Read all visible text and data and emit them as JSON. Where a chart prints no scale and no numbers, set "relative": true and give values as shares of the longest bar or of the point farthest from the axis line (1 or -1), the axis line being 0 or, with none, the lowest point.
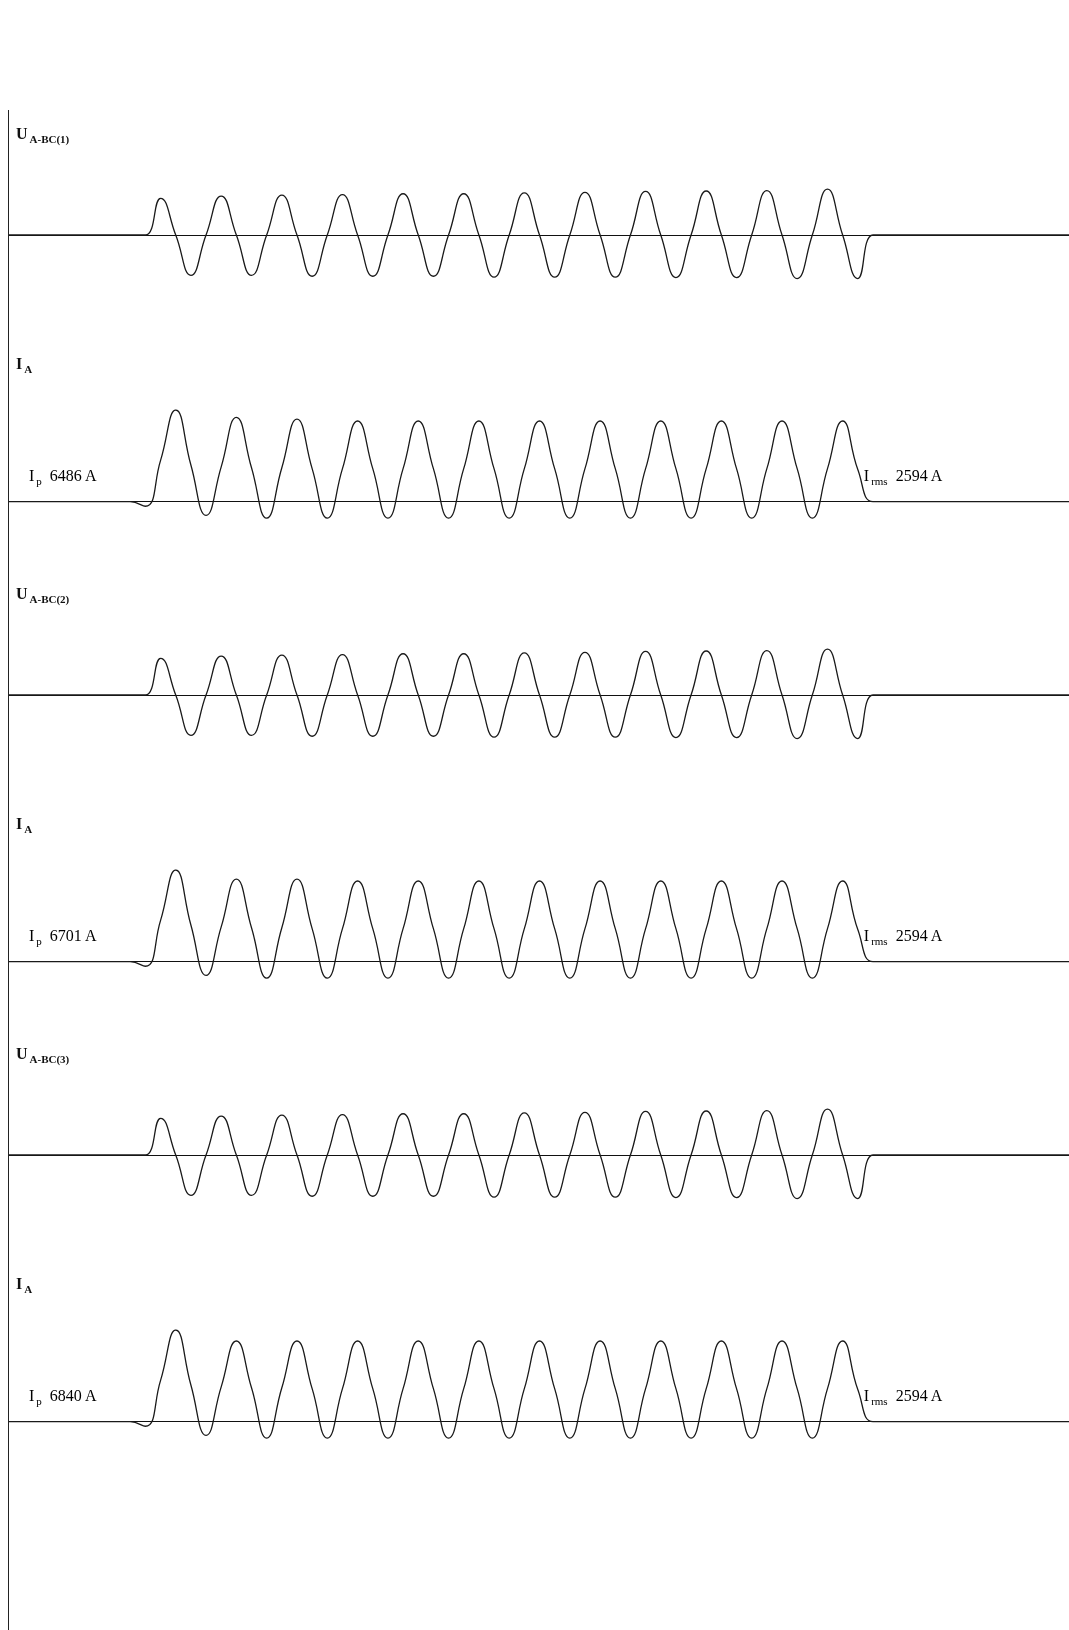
{
  "chart_data": [
    {
      "type": "line",
      "relative": true,
      "marker": "none",
      "title": "U$_{A-BC(1)}$",
      "categories": [
        null,
        null,
        null,
        null,
        null,
        null,
        null,
        null,
        null,
        null,
        null,
        null,
        null,
        null,
        null,
        null,
        null,
        null,
        null,
        null,
        null,
        null,
        null,
        null,
        null,
        null,
        null,
        null,
        null,
        null,
        null,
        null,
        null,
        null,
        null,
        null,
        null,
        null,
        null,
        null,
        null,
        null,
        null,
        null,
        null,
        null,
        null,
        null,
        null,
        null,
        null,
        null,
        null,
        null,
        null,
        null,
        null,
        null,
        null,
        null,
        null,
        null,
        null,
        null,
        null,
        null,
        null,
        null,
        null,
        null,
        null
      ],
      "series": [
        {
          "color": "#1a1a1a",
          "values": [
            0,
            0,
            0,
            0,
            0,
            0,
            0,
            0,
            0,
            0,
            0.8,
            0,
            -0.88,
            0,
            0.85,
            0,
            -0.88,
            0,
            0.87,
            0,
            -0.9,
            0,
            0.88,
            0,
            -0.9,
            0,
            0.9,
            0,
            -0.9,
            0,
            0.9,
            0,
            -0.92,
            0,
            0.92,
            0,
            -0.92,
            0,
            0.93,
            0,
            -0.92,
            0,
            0.95,
            0,
            -0.93,
            0,
            0.96,
            0,
            -0.93,
            0,
            0.97,
            0,
            -0.95,
            0,
            1,
            0,
            -0.95,
            0,
            0,
            0,
            0,
            0,
            0,
            0,
            0,
            0,
            0,
            0,
            0,
            0,
            0
          ]
        }
      ]
    },
    {
      "type": "line",
      "relative": true,
      "marker": "none",
      "title": "I$_{A}$",
      "annotations": [
        "I$_{p}$  6486 A",
        "I$_{rms}$  2594 A"
      ],
      "categories": [
        null,
        null,
        null,
        null,
        null,
        null,
        null,
        null,
        null,
        null,
        null,
        null,
        null,
        null,
        null,
        null,
        null,
        null,
        null,
        null,
        null,
        null,
        null,
        null,
        null,
        null,
        null,
        null,
        null,
        null,
        null,
        null,
        null,
        null,
        null,
        null,
        null,
        null,
        null,
        null,
        null,
        null,
        null,
        null,
        null,
        null,
        null,
        null,
        null,
        null,
        null,
        null,
        null,
        null,
        null,
        null,
        null,
        null,
        null,
        null,
        null,
        null,
        null,
        null,
        null,
        null,
        null,
        null,
        null,
        null,
        null
      ],
      "series": [
        {
          "color": "#1a1a1a",
          "values": [
            0,
            0,
            0,
            0,
            0,
            0,
            0,
            0,
            0,
            -0.05,
            0.45,
            1,
            0.4,
            -0.15,
            0.38,
            0.92,
            0.37,
            -0.18,
            0.37,
            0.9,
            0.36,
            -0.18,
            0.36,
            0.88,
            0.36,
            -0.18,
            0.36,
            0.88,
            0.36,
            -0.18,
            0.36,
            0.88,
            0.36,
            -0.18,
            0.36,
            0.88,
            0.36,
            -0.18,
            0.36,
            0.88,
            0.36,
            -0.18,
            0.36,
            0.88,
            0.36,
            -0.18,
            0.36,
            0.88,
            0.36,
            -0.18,
            0.36,
            0.88,
            0.36,
            -0.18,
            0.36,
            0.88,
            0.35,
            0,
            0,
            0,
            0,
            0,
            0,
            0,
            0,
            0,
            0,
            0,
            0,
            0,
            0
          ]
        }
      ]
    },
    {
      "type": "line",
      "relative": true,
      "marker": "none",
      "title": "U$_{A-BC(2)}$",
      "categories": [
        null,
        null,
        null,
        null,
        null,
        null,
        null,
        null,
        null,
        null,
        null,
        null,
        null,
        null,
        null,
        null,
        null,
        null,
        null,
        null,
        null,
        null,
        null,
        null,
        null,
        null,
        null,
        null,
        null,
        null,
        null,
        null,
        null,
        null,
        null,
        null,
        null,
        null,
        null,
        null,
        null,
        null,
        null,
        null,
        null,
        null,
        null,
        null,
        null,
        null,
        null,
        null,
        null,
        null,
        null,
        null,
        null,
        null,
        null,
        null,
        null,
        null,
        null,
        null,
        null,
        null,
        null,
        null,
        null,
        null,
        null
      ],
      "series": [
        {
          "color": "#1a1a1a",
          "values": [
            0,
            0,
            0,
            0,
            0,
            0,
            0,
            0,
            0,
            0,
            0.8,
            0,
            -0.88,
            0,
            0.85,
            0,
            -0.88,
            0,
            0.87,
            0,
            -0.9,
            0,
            0.88,
            0,
            -0.9,
            0,
            0.9,
            0,
            -0.9,
            0,
            0.9,
            0,
            -0.92,
            0,
            0.92,
            0,
            -0.92,
            0,
            0.93,
            0,
            -0.92,
            0,
            0.95,
            0,
            -0.93,
            0,
            0.96,
            0,
            -0.93,
            0,
            0.97,
            0,
            -0.95,
            0,
            1,
            0,
            -0.95,
            0,
            0,
            0,
            0,
            0,
            0,
            0,
            0,
            0,
            0,
            0,
            0,
            0,
            0
          ]
        }
      ]
    },
    {
      "type": "line",
      "relative": true,
      "marker": "none",
      "title": "I$_{A}$",
      "annotations": [
        "I$_{p}$  6701 A",
        "I$_{rms}$  2594 A"
      ],
      "categories": [
        null,
        null,
        null,
        null,
        null,
        null,
        null,
        null,
        null,
        null,
        null,
        null,
        null,
        null,
        null,
        null,
        null,
        null,
        null,
        null,
        null,
        null,
        null,
        null,
        null,
        null,
        null,
        null,
        null,
        null,
        null,
        null,
        null,
        null,
        null,
        null,
        null,
        null,
        null,
        null,
        null,
        null,
        null,
        null,
        null,
        null,
        null,
        null,
        null,
        null,
        null,
        null,
        null,
        null,
        null,
        null,
        null,
        null,
        null,
        null,
        null,
        null,
        null,
        null,
        null,
        null,
        null,
        null,
        null,
        null,
        null
      ],
      "series": [
        {
          "color": "#1a1a1a",
          "values": [
            0,
            0,
            0,
            0,
            0,
            0,
            0,
            0,
            0,
            -0.05,
            0.45,
            1,
            0.4,
            -0.15,
            0.38,
            0.9,
            0.37,
            -0.18,
            0.37,
            0.9,
            0.36,
            -0.18,
            0.36,
            0.88,
            0.36,
            -0.18,
            0.36,
            0.88,
            0.36,
            -0.18,
            0.36,
            0.88,
            0.36,
            -0.18,
            0.36,
            0.88,
            0.36,
            -0.18,
            0.36,
            0.88,
            0.36,
            -0.18,
            0.36,
            0.88,
            0.36,
            -0.18,
            0.36,
            0.88,
            0.36,
            -0.18,
            0.36,
            0.88,
            0.36,
            -0.18,
            0.36,
            0.88,
            0.35,
            0,
            0,
            0,
            0,
            0,
            0,
            0,
            0,
            0,
            0,
            0,
            0,
            0,
            0
          ]
        }
      ]
    },
    {
      "type": "line",
      "relative": true,
      "marker": "none",
      "title": "U$_{A-BC(3)}$",
      "categories": [
        null,
        null,
        null,
        null,
        null,
        null,
        null,
        null,
        null,
        null,
        null,
        null,
        null,
        null,
        null,
        null,
        null,
        null,
        null,
        null,
        null,
        null,
        null,
        null,
        null,
        null,
        null,
        null,
        null,
        null,
        null,
        null,
        null,
        null,
        null,
        null,
        null,
        null,
        null,
        null,
        null,
        null,
        null,
        null,
        null,
        null,
        null,
        null,
        null,
        null,
        null,
        null,
        null,
        null,
        null,
        null,
        null,
        null,
        null,
        null,
        null,
        null,
        null,
        null,
        null,
        null,
        null,
        null,
        null,
        null,
        null
      ],
      "series": [
        {
          "color": "#1a1a1a",
          "values": [
            0,
            0,
            0,
            0,
            0,
            0,
            0,
            0,
            0,
            0,
            0.8,
            0,
            -0.88,
            0,
            0.85,
            0,
            -0.88,
            0,
            0.87,
            0,
            -0.9,
            0,
            0.88,
            0,
            -0.9,
            0,
            0.9,
            0,
            -0.9,
            0,
            0.9,
            0,
            -0.92,
            0,
            0.92,
            0,
            -0.92,
            0,
            0.93,
            0,
            -0.92,
            0,
            0.95,
            0,
            -0.93,
            0,
            0.96,
            0,
            -0.93,
            0,
            0.97,
            0,
            -0.95,
            0,
            1,
            0,
            -0.95,
            0,
            0,
            0,
            0,
            0,
            0,
            0,
            0,
            0,
            0,
            0,
            0,
            0,
            0
          ]
        }
      ]
    },
    {
      "type": "line",
      "relative": true,
      "marker": "none",
      "title": "I$_{A}$",
      "annotations": [
        "I$_{p}$  6840 A",
        "I$_{rms}$  2594 A"
      ],
      "categories": [
        null,
        null,
        null,
        null,
        null,
        null,
        null,
        null,
        null,
        null,
        null,
        null,
        null,
        null,
        null,
        null,
        null,
        null,
        null,
        null,
        null,
        null,
        null,
        null,
        null,
        null,
        null,
        null,
        null,
        null,
        null,
        null,
        null,
        null,
        null,
        null,
        null,
        null,
        null,
        null,
        null,
        null,
        null,
        null,
        null,
        null,
        null,
        null,
        null,
        null,
        null,
        null,
        null,
        null,
        null,
        null,
        null,
        null,
        null,
        null,
        null,
        null,
        null,
        null,
        null,
        null,
        null,
        null,
        null,
        null,
        null
      ],
      "series": [
        {
          "color": "#1a1a1a",
          "values": [
            0,
            0,
            0,
            0,
            0,
            0,
            0,
            0,
            0,
            -0.05,
            0.45,
            1,
            0.4,
            -0.15,
            0.38,
            0.88,
            0.37,
            -0.18,
            0.37,
            0.88,
            0.36,
            -0.18,
            0.36,
            0.88,
            0.36,
            -0.18,
            0.36,
            0.88,
            0.36,
            -0.18,
            0.36,
            0.88,
            0.36,
            -0.18,
            0.36,
            0.88,
            0.36,
            -0.18,
            0.36,
            0.88,
            0.36,
            -0.18,
            0.36,
            0.88,
            0.36,
            -0.18,
            0.36,
            0.88,
            0.36,
            -0.18,
            0.36,
            0.88,
            0.36,
            -0.18,
            0.36,
            0.88,
            0.35,
            0,
            0,
            0,
            0,
            0,
            0,
            0,
            0,
            0,
            0,
            0,
            0,
            0,
            0
          ]
        }
      ]
    }
  ]
}
